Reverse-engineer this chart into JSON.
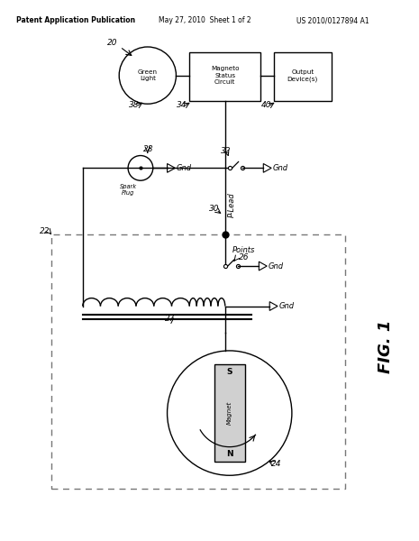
{
  "title_left": "Patent Application Publication",
  "title_mid": "May 27, 2010  Sheet 1 of 2",
  "title_right": "US 2010/0127894 A1",
  "bg_color": "#ffffff",
  "line_color": "#000000"
}
